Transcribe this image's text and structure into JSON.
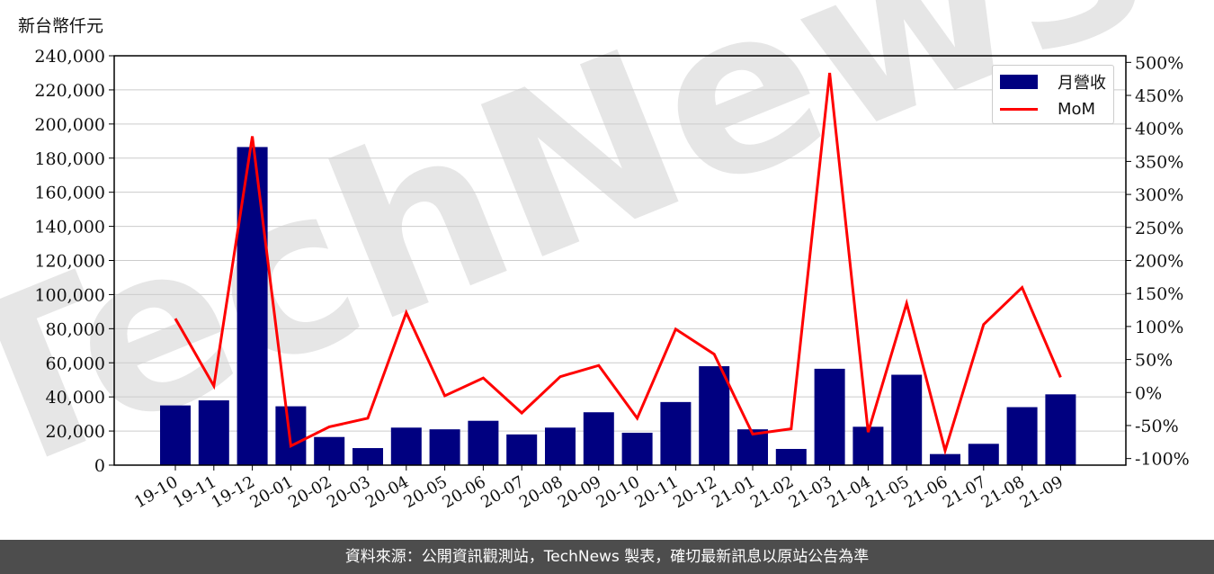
{
  "header": {
    "unit_label": "新台幣仟元"
  },
  "legend": {
    "bar_label": "月營收",
    "line_label": "MoM"
  },
  "footer": {
    "text": "資料來源：公開資訊觀測站，TechNews 製表，確切最新訊息以原站公告為準"
  },
  "watermark": "TechNews",
  "colors": {
    "bar": "#000080",
    "line": "#ff0000",
    "footer_bg": "#4d4d4d"
  },
  "chart_data": {
    "type": "bar+line",
    "categories": [
      "19-10",
      "19-11",
      "19-12",
      "20-01",
      "20-02",
      "20-03",
      "20-04",
      "20-05",
      "20-06",
      "20-07",
      "20-08",
      "20-09",
      "20-10",
      "20-11",
      "20-12",
      "21-01",
      "21-02",
      "21-03",
      "21-04",
      "21-05",
      "21-06",
      "21-07",
      "21-08",
      "21-09"
    ],
    "series": [
      {
        "name": "月營收",
        "type": "bar",
        "axis": "left",
        "values": [
          35000,
          38000,
          186500,
          34500,
          16500,
          10000,
          22000,
          21000,
          26000,
          18000,
          22000,
          31000,
          19000,
          37000,
          58000,
          21000,
          9500,
          56500,
          22500,
          53000,
          6500,
          12500,
          34000,
          41500
        ]
      },
      {
        "name": "MoM",
        "type": "line",
        "axis": "right",
        "values": [
          112,
          10,
          388,
          -81,
          -52,
          -39,
          121,
          -5,
          22,
          -31,
          24,
          41,
          -39,
          96,
          58,
          -63,
          -55,
          484,
          -60,
          135,
          -88,
          103,
          159,
          23
        ]
      }
    ],
    "ylim_left": [
      0,
      240000
    ],
    "yticks_left": [
      "0",
      "20,000",
      "40,000",
      "60,000",
      "80,000",
      "100,000",
      "120,000",
      "140,000",
      "160,000",
      "180,000",
      "200,000",
      "220,000",
      "240,000"
    ],
    "ylim_right": [
      -110,
      510
    ],
    "yticks_right": [
      "-100%",
      "-50%",
      "0%",
      "50%",
      "100%",
      "150%",
      "200%",
      "250%",
      "300%",
      "350%",
      "400%",
      "450%",
      "500%"
    ],
    "grid": "horizontal",
    "legend_position": "top-right"
  }
}
